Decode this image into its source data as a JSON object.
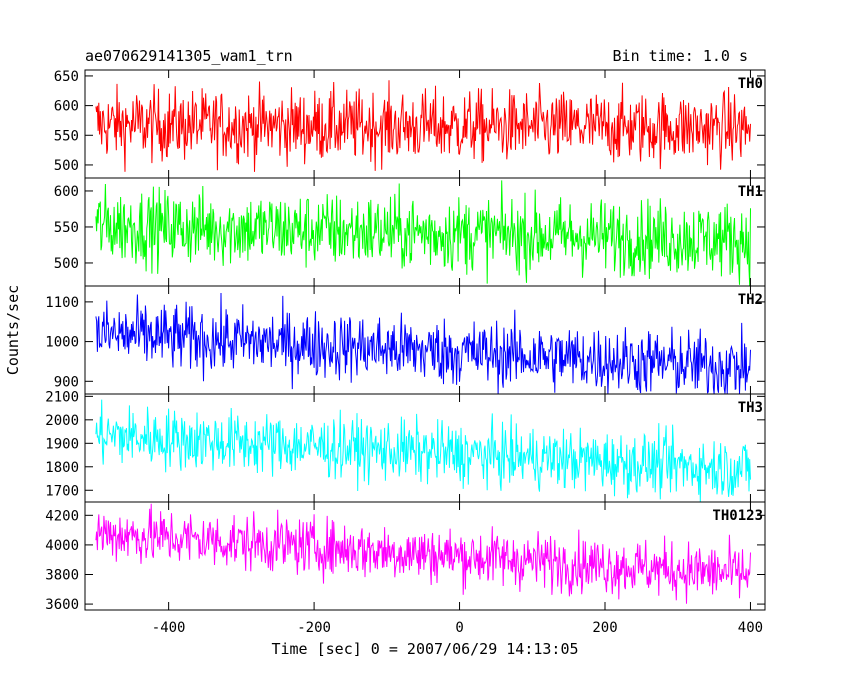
{
  "header": {
    "left_title": "ae070629141305_wam1_trn",
    "right_title": "Bin time: 1.0 s"
  },
  "chart_data": {
    "type": "line",
    "ylabel": "Counts/sec",
    "xlabel": "Time [sec] 0 = 2007/06/29 14:13:05",
    "xlim": [
      -515,
      420
    ],
    "xticks": [
      -400,
      -200,
      0,
      200,
      400
    ],
    "x_start": -500,
    "x_end": 400,
    "bin": 1.0,
    "grid": false,
    "panels": [
      {
        "name": "TH0",
        "color": "#ff0000",
        "ylim": [
          478,
          660
        ],
        "yticks": [
          500,
          550,
          600,
          650
        ],
        "start_level": 568,
        "end_level": 562,
        "scatter": 30,
        "max_spike": 90
      },
      {
        "name": "TH1",
        "color": "#00ff00",
        "ylim": [
          468,
          618
        ],
        "yticks": [
          500,
          550,
          600
        ],
        "start_level": 552,
        "end_level": 532,
        "scatter": 26,
        "max_spike": 75
      },
      {
        "name": "TH2",
        "color": "#0000ff",
        "ylim": [
          868,
          1140
        ],
        "yticks": [
          900,
          1000,
          1100
        ],
        "start_level": 1020,
        "end_level": 935,
        "scatter": 42,
        "max_spike": 120
      },
      {
        "name": "TH3",
        "color": "#00ffff",
        "ylim": [
          1650,
          2110
        ],
        "yticks": [
          1700,
          1800,
          1900,
          2000,
          2100
        ],
        "start_level": 1935,
        "end_level": 1790,
        "scatter": 65,
        "max_spike": 180
      },
      {
        "name": "TH0123",
        "color": "#ff00ff",
        "ylim": [
          3560,
          4290
        ],
        "yticks": [
          3600,
          3800,
          4000,
          4200
        ],
        "start_level": 4080,
        "end_level": 3800,
        "scatter": 95,
        "max_spike": 260
      }
    ]
  }
}
